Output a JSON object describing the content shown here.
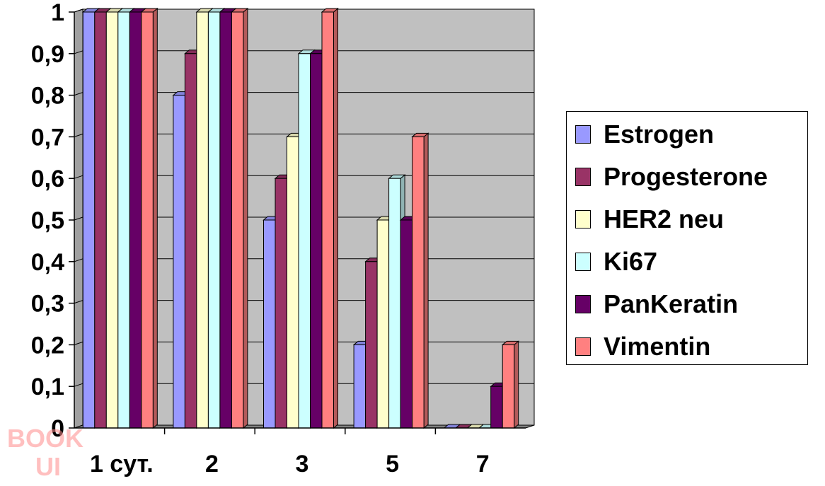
{
  "chart_data": {
    "type": "bar",
    "categories": [
      "1 сут.",
      "2",
      "3",
      "5",
      "7"
    ],
    "series": [
      {
        "name": "Estrogen",
        "color": "#9999ff",
        "values": [
          1,
          0.8,
          0.5,
          0.2,
          0
        ]
      },
      {
        "name": "Progesterone",
        "color": "#993366",
        "values": [
          1,
          0.9,
          0.6,
          0.4,
          0
        ]
      },
      {
        "name": "HER2 neu",
        "color": "#ffffcc",
        "values": [
          1,
          1,
          0.7,
          0.5,
          0
        ]
      },
      {
        "name": "Ki67",
        "color": "#ccffff",
        "values": [
          1,
          1,
          0.9,
          0.6,
          0
        ]
      },
      {
        "name": "PanKeratin",
        "color": "#660066",
        "values": [
          1,
          1,
          0.9,
          0.5,
          0.1
        ]
      },
      {
        "name": "Vimentin",
        "color": "#ff8080",
        "values": [
          1,
          1,
          1,
          0.7,
          0.2
        ]
      }
    ],
    "yticks": [
      "0",
      "0,1",
      "0,2",
      "0,3",
      "0,4",
      "0,5",
      "0,6",
      "0,7",
      "0,8",
      "0,9",
      "1"
    ],
    "ylim": [
      0,
      1
    ],
    "grid": true,
    "legend_position": "right",
    "plot_background": "#c0c0c0",
    "three_d": true
  },
  "watermark": {
    "text_top": "BOOK",
    "text_bottom": "UI"
  }
}
